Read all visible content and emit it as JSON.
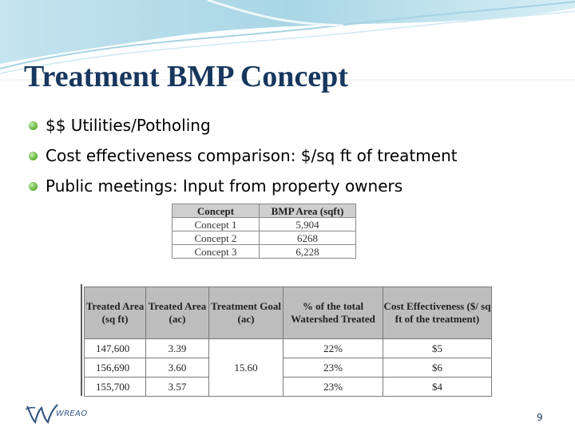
{
  "slide": {
    "title": "Treatment BMP Concept",
    "bullets": [
      "$$ Utilities/Potholing",
      "Cost effectiveness comparison:  $/sq ft of treatment",
      "Public meetings:  Input from property owners"
    ],
    "page_number": "9",
    "logo_text": "WREAO",
    "accent_color": "#17375e",
    "bullet_color": "#67b83e"
  },
  "area_table": {
    "headers": [
      "Concept",
      "BMP Area (sqft)"
    ],
    "rows": [
      [
        "Concept 1",
        "5,904"
      ],
      [
        "Concept 2",
        "6268"
      ],
      [
        "Concept 3",
        "6,228"
      ]
    ]
  },
  "cost_table": {
    "headers": [
      "Treated Area (sq ft)",
      "Treated Area (ac)",
      "Treatment Goal (ac)",
      "% of the total Watershed Treated",
      "Cost Effectiveness ($/ sq ft of the treatment)"
    ],
    "treatment_goal": "15.60",
    "rows": [
      {
        "sqft": "147,600",
        "ac": "3.39",
        "pct": "22%",
        "cost": "$5"
      },
      {
        "sqft": "156,690",
        "ac": "3.60",
        "pct": "23%",
        "cost": "$6"
      },
      {
        "sqft": "155,700",
        "ac": "3.57",
        "pct": "23%",
        "cost": "$4"
      }
    ]
  }
}
